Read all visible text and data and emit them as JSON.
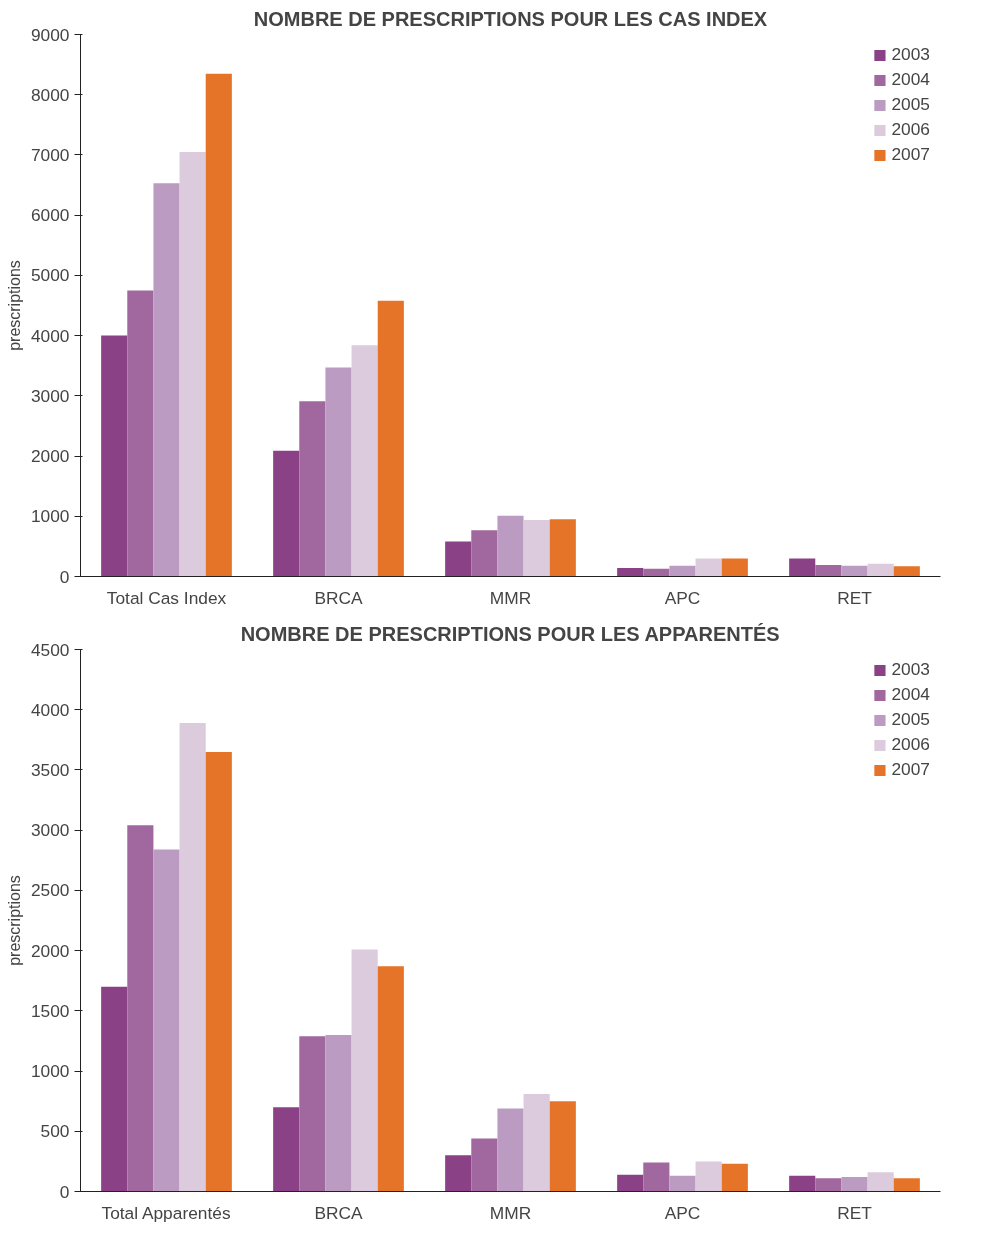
{
  "chart_data": [
    {
      "type": "bar",
      "title": "NOMBRE DE PRESCRIPTIONS POUR LES CAS INDEX",
      "ylabel": "prescriptions",
      "categories": [
        "Total Cas Index",
        "BRCA",
        "MMR",
        "APC",
        "RET"
      ],
      "ylim": [
        0,
        9000
      ],
      "yticks": [
        0,
        1000,
        2000,
        3000,
        4000,
        5000,
        6000,
        7000,
        8000,
        9000
      ],
      "grid": false,
      "legend": "top right",
      "series": [
        {
          "name": "2003",
          "color": "#8b4186",
          "values": [
            4000,
            2090,
            580,
            140,
            300
          ]
        },
        {
          "name": "2004",
          "color": "#a0689f",
          "values": [
            4750,
            2910,
            770,
            130,
            190
          ]
        },
        {
          "name": "2005",
          "color": "#bb9bc1",
          "values": [
            6530,
            3470,
            1010,
            180,
            180
          ]
        },
        {
          "name": "2006",
          "color": "#dccadd",
          "values": [
            7050,
            3840,
            940,
            300,
            210
          ]
        },
        {
          "name": "2007",
          "color": "#e57428",
          "values": [
            8350,
            4580,
            950,
            300,
            170
          ]
        }
      ]
    },
    {
      "type": "bar",
      "title": "NOMBRE DE PRESCRIPTIONS POUR LES APPARENTÉS",
      "ylabel": "prescriptions",
      "categories": [
        "Total Apparentés",
        "BRCA",
        "MMR",
        "APC",
        "RET"
      ],
      "ylim": [
        0,
        4500
      ],
      "yticks": [
        0,
        500,
        1000,
        1500,
        2000,
        2500,
        3000,
        3500,
        4000,
        4500
      ],
      "grid": false,
      "legend": "top right",
      "series": [
        {
          "name": "2003",
          "color": "#8b4186",
          "values": [
            1700,
            700,
            300,
            140,
            130
          ]
        },
        {
          "name": "2004",
          "color": "#a0689f",
          "values": [
            3040,
            1290,
            440,
            240,
            110
          ]
        },
        {
          "name": "2005",
          "color": "#bb9bc1",
          "values": [
            2840,
            1300,
            690,
            130,
            120
          ]
        },
        {
          "name": "2006",
          "color": "#dccadd",
          "values": [
            3890,
            2010,
            810,
            250,
            160
          ]
        },
        {
          "name": "2007",
          "color": "#e57428",
          "values": [
            3650,
            1870,
            750,
            230,
            110
          ]
        }
      ]
    }
  ]
}
